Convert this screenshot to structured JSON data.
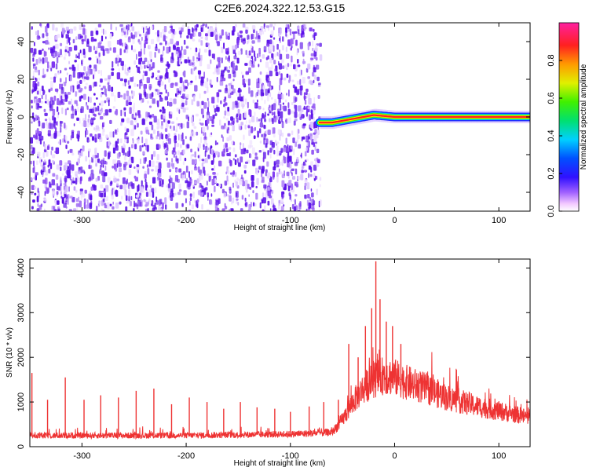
{
  "page": {
    "title": "C2E6.2024.322.12.53.G15"
  },
  "chart_data": [
    {
      "type": "heatmap",
      "title": "C2E6.2024.322.12.53.G15",
      "xlabel": "Height of straight line (km)",
      "ylabel": "Frequency (Hz)",
      "xlim": [
        -350,
        130
      ],
      "ylim": [
        -50,
        50
      ],
      "x_ticks": [
        -300,
        -200,
        -100,
        0,
        100
      ],
      "y_ticks": [
        -40,
        -20,
        0,
        20,
        40
      ],
      "noise_region_x": [
        -350,
        -72
      ],
      "signal": {
        "x_range": [
          -72,
          130
        ],
        "points": [
          {
            "x": -70,
            "y": -3
          },
          {
            "x": -60,
            "y": -3
          },
          {
            "x": -50,
            "y": -2
          },
          {
            "x": -40,
            "y": -1
          },
          {
            "x": -30,
            "y": 0
          },
          {
            "x": -20,
            "y": 1
          },
          {
            "x": -10,
            "y": 0.5
          },
          {
            "x": 0,
            "y": 0
          },
          {
            "x": 50,
            "y": 0
          },
          {
            "x": 100,
            "y": 0
          },
          {
            "x": 130,
            "y": 0
          }
        ]
      },
      "colorbar": {
        "label": "Normalized spectral amplitude",
        "range": [
          0,
          1
        ],
        "ticks": [
          0.0,
          0.2,
          0.4,
          0.6,
          0.8
        ]
      }
    },
    {
      "type": "line",
      "xlabel": "Height of straight line (km)",
      "ylabel": "SNR (10 * v/v)",
      "xlim": [
        -350,
        130
      ],
      "ylim": [
        0,
        4200
      ],
      "x_ticks": [
        -300,
        -200,
        -100,
        0,
        100
      ],
      "y_ticks": [
        0,
        1000,
        2000,
        3000,
        4000
      ],
      "color": "#ee3333",
      "series": [
        {
          "baseline": [
            {
              "x": -350,
              "y": 250
            },
            {
              "x": -200,
              "y": 250
            },
            {
              "x": -100,
              "y": 280
            },
            {
              "x": -60,
              "y": 320
            },
            {
              "x": -50,
              "y": 600
            },
            {
              "x": -40,
              "y": 1000
            },
            {
              "x": -30,
              "y": 1300
            },
            {
              "x": -20,
              "y": 1500
            },
            {
              "x": -10,
              "y": 1600
            },
            {
              "x": 0,
              "y": 1550
            },
            {
              "x": 10,
              "y": 1450
            },
            {
              "x": 30,
              "y": 1300
            },
            {
              "x": 50,
              "y": 1100
            },
            {
              "x": 80,
              "y": 900
            },
            {
              "x": 100,
              "y": 800
            },
            {
              "x": 130,
              "y": 650
            }
          ],
          "spikes": [
            {
              "x": -348,
              "y": 1650
            },
            {
              "x": -333,
              "y": 1050
            },
            {
              "x": -316,
              "y": 1550
            },
            {
              "x": -298,
              "y": 1050
            },
            {
              "x": -282,
              "y": 1150
            },
            {
              "x": -265,
              "y": 1100
            },
            {
              "x": -248,
              "y": 1250
            },
            {
              "x": -231,
              "y": 1300
            },
            {
              "x": -214,
              "y": 950
            },
            {
              "x": -197,
              "y": 1100
            },
            {
              "x": -180,
              "y": 1000
            },
            {
              "x": -164,
              "y": 850
            },
            {
              "x": -148,
              "y": 1000
            },
            {
              "x": -132,
              "y": 880
            },
            {
              "x": -115,
              "y": 850
            },
            {
              "x": -100,
              "y": 780
            },
            {
              "x": -82,
              "y": 900
            },
            {
              "x": -68,
              "y": 1000
            },
            {
              "x": -54,
              "y": 1050
            },
            {
              "x": -44,
              "y": 2300
            },
            {
              "x": -35,
              "y": 2000
            },
            {
              "x": -28,
              "y": 2700
            },
            {
              "x": -22,
              "y": 3100
            },
            {
              "x": -18,
              "y": 4150
            },
            {
              "x": -14,
              "y": 3300
            },
            {
              "x": -8,
              "y": 2800
            },
            {
              "x": -2,
              "y": 2700
            },
            {
              "x": 6,
              "y": 2300
            }
          ]
        }
      ]
    }
  ]
}
